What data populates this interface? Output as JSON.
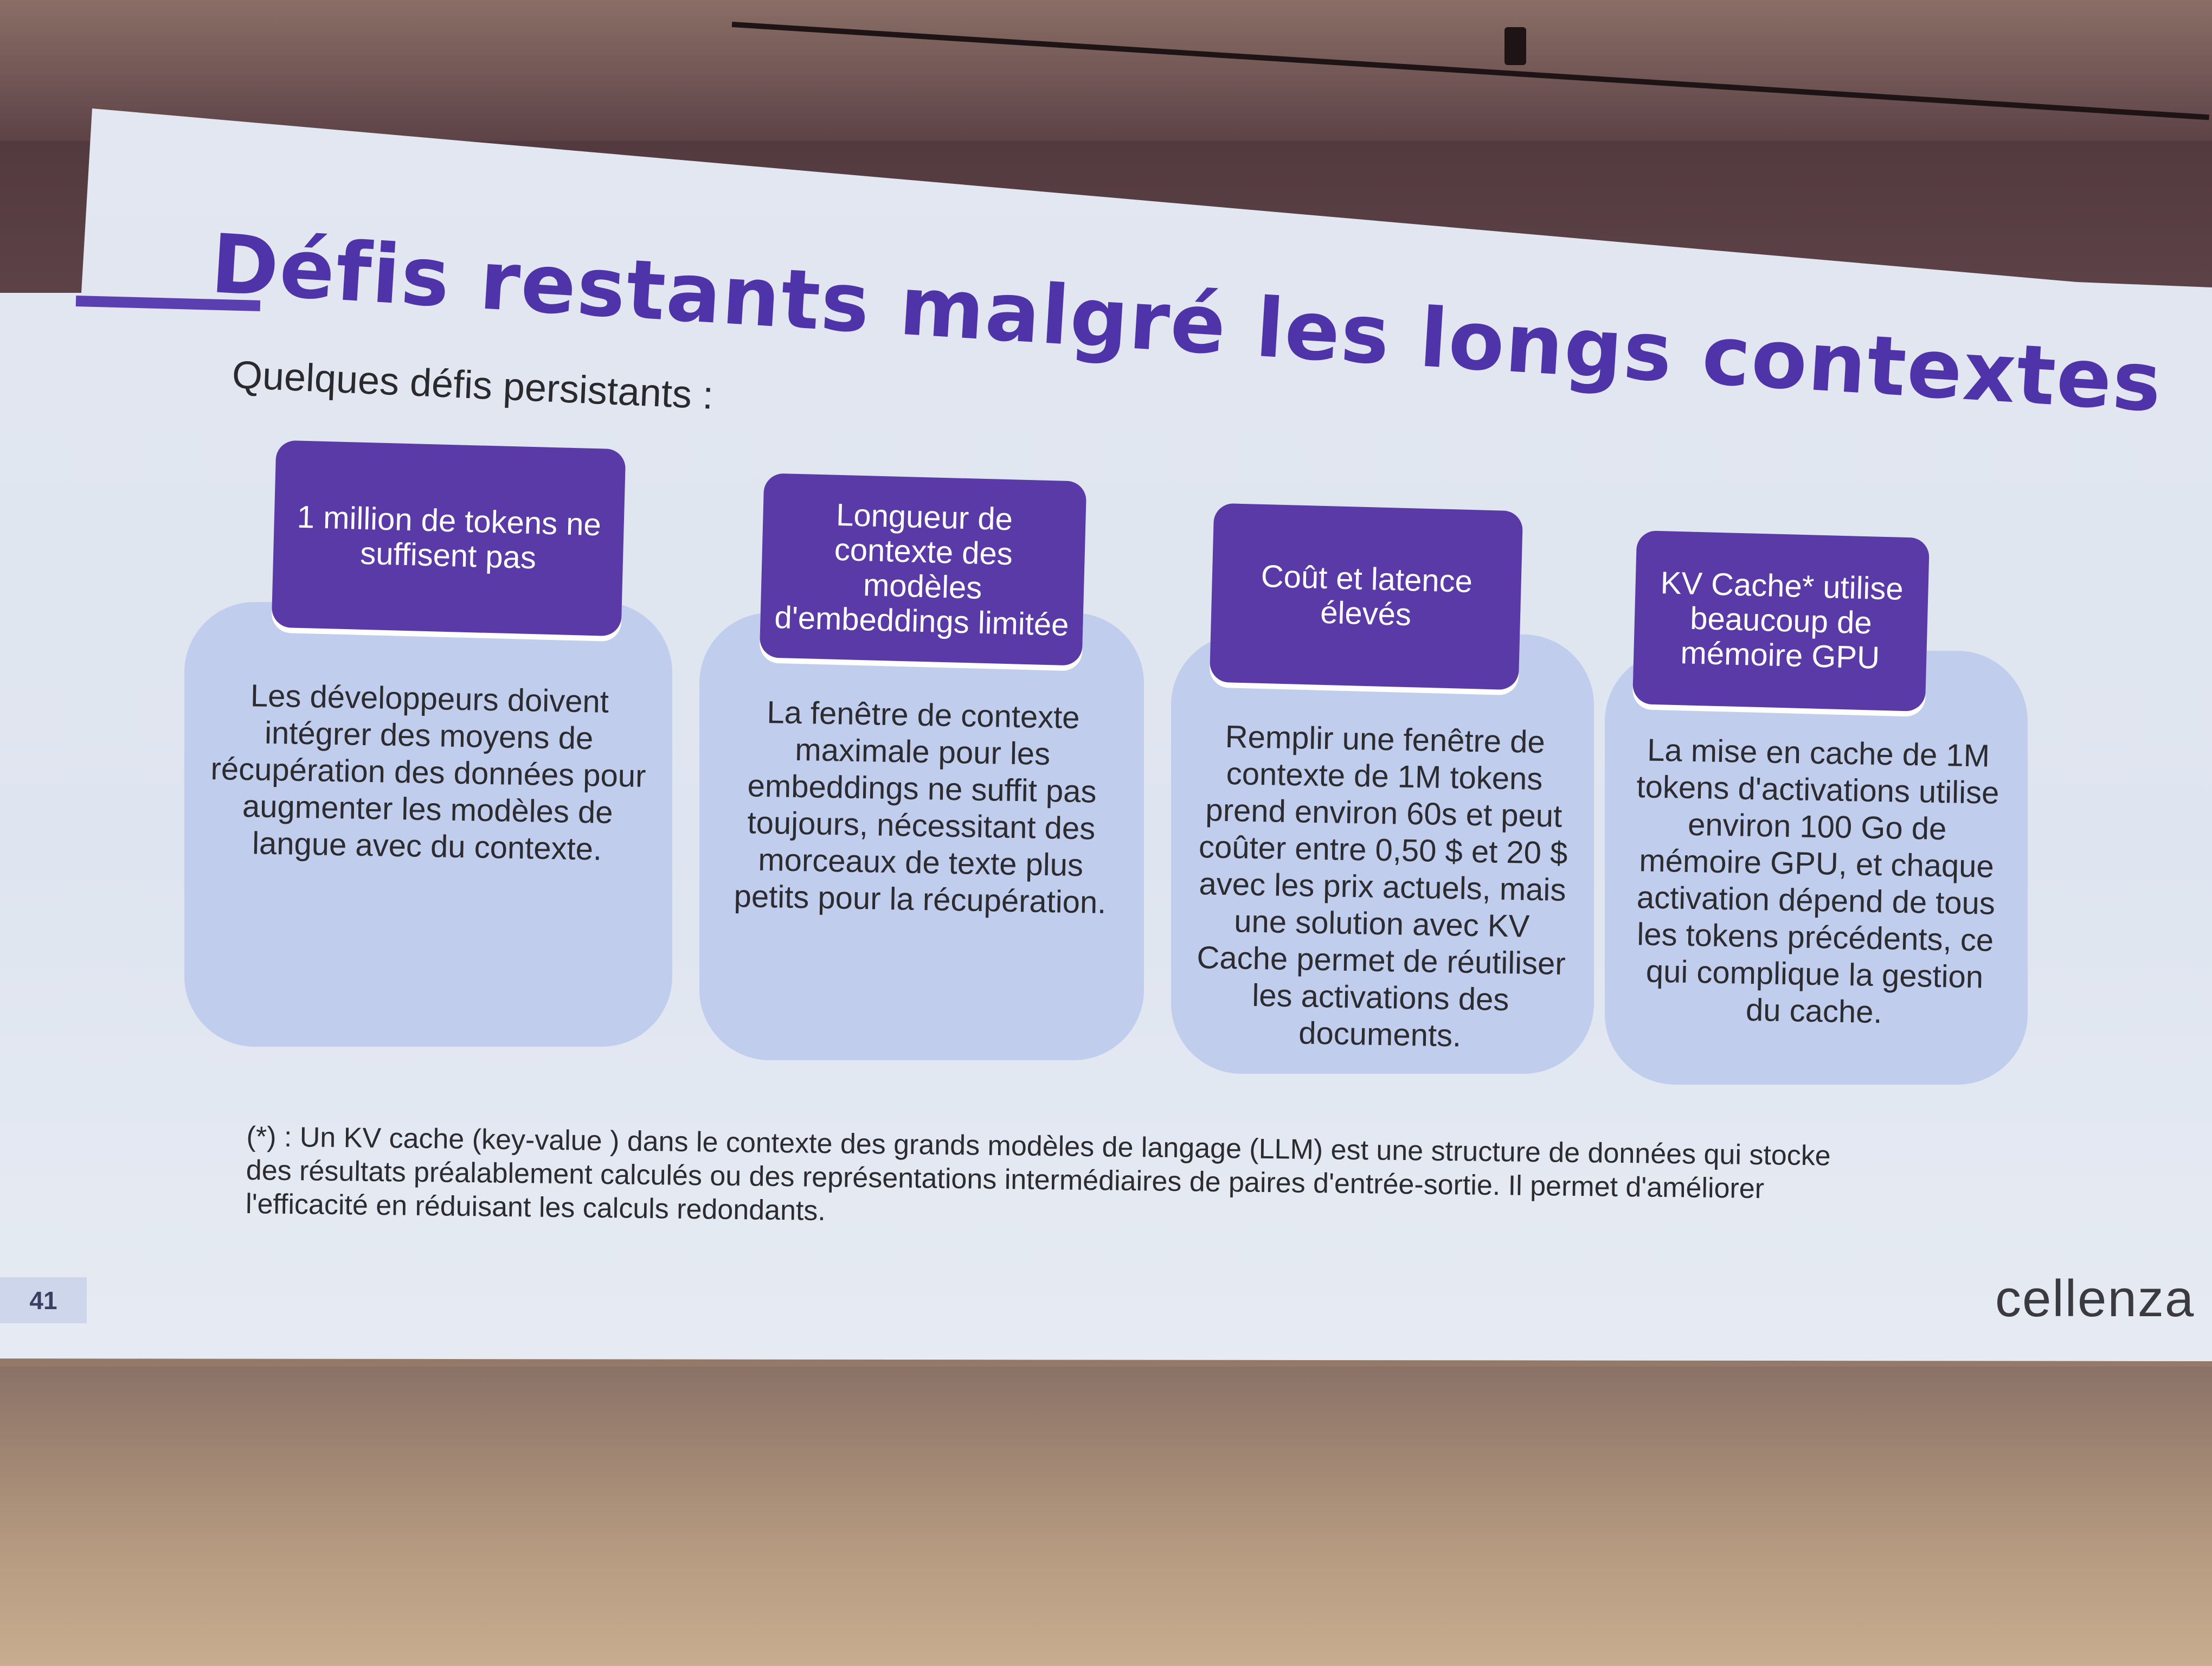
{
  "slide": {
    "title": "Défis restants malgré les longs contextes",
    "subtitle": "Quelques défis persistants :",
    "cards": [
      {
        "header": "1 million de tokens ne suffisent pas",
        "body": "Les développeurs doivent intégrer des moyens de récupération des données pour augmenter les modèles de langue avec du contexte."
      },
      {
        "header": "Longueur de contexte des modèles d'embeddings limitée",
        "body": "La fenêtre de contexte maximale pour les embeddings ne suffit pas toujours, nécessitant des morceaux de texte plus petits pour la récupération."
      },
      {
        "header": "Coût et latence élevés",
        "body": "Remplir une fenêtre de contexte de 1M tokens prend environ 60s et peut coûter entre 0,50 $ et 20 $ avec les prix actuels, mais une solution avec KV Cache permet de réutiliser les activations des documents."
      },
      {
        "header": "KV Cache* utilise beaucoup de mémoire GPU",
        "body": "La mise en cache de 1M tokens d'activations utilise environ 100 Go de mémoire GPU, et chaque activation dépend de tous les tokens précédents, ce qui complique la gestion du cache."
      }
    ],
    "footnote": "(*) : Un KV cache (key-value ) dans le contexte des grands modèles de langage (LLM) est une structure de données qui stocke des résultats préalablement calculés ou des représentations intermédiaires de paires d'entrée-sortie. Il permet d'améliorer l'efficacité en réduisant les calculs redondants.",
    "page_number": "41",
    "logo": "cellenza"
  }
}
